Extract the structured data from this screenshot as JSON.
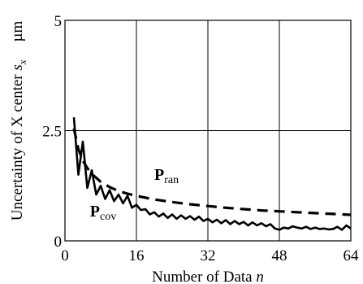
{
  "chart_data": {
    "type": "line",
    "xlabel": "Number of Data",
    "xlabel_var": "n",
    "ylabel": "Uncertainty of X center",
    "ylabel_var_main": "s",
    "ylabel_var_sub": "x",
    "ylabel_unit": "µm",
    "xlim": [
      0,
      64
    ],
    "ylim": [
      0,
      5
    ],
    "xticks": [
      "0",
      "16",
      "32",
      "48",
      "64"
    ],
    "xtick_values": [
      0,
      16,
      32,
      48,
      64
    ],
    "yticks": [
      "0",
      "2.5",
      "5"
    ],
    "ytick_values": [
      0,
      2.5,
      5
    ],
    "grid": true,
    "series": [
      {
        "name_main": "P",
        "name_sub": "ran",
        "style": "dashed",
        "x": [
          2,
          3,
          4,
          5,
          6,
          8,
          10,
          12,
          14,
          16,
          20,
          24,
          28,
          32,
          36,
          40,
          44,
          48,
          52,
          56,
          60,
          64
        ],
        "y": [
          2.55,
          2.08,
          1.82,
          1.65,
          1.52,
          1.34,
          1.22,
          1.13,
          1.07,
          1.02,
          0.94,
          0.88,
          0.83,
          0.79,
          0.75,
          0.72,
          0.69,
          0.67,
          0.65,
          0.63,
          0.61,
          0.59
        ]
      },
      {
        "name_main": "P",
        "name_sub": "cov",
        "style": "solid",
        "x": [
          2,
          3,
          4,
          5,
          6,
          7,
          8,
          9,
          10,
          11,
          12,
          13,
          14,
          15,
          16,
          17,
          18,
          19,
          20,
          21,
          22,
          23,
          24,
          25,
          26,
          27,
          28,
          29,
          30,
          31,
          32,
          33,
          34,
          35,
          36,
          37,
          38,
          39,
          40,
          41,
          42,
          43,
          44,
          45,
          46,
          47,
          48,
          49,
          50,
          51,
          52,
          53,
          54,
          55,
          56,
          57,
          58,
          59,
          60,
          61,
          62,
          63,
          64
        ],
        "y": [
          2.8,
          1.5,
          2.25,
          1.2,
          1.6,
          1.05,
          1.25,
          0.95,
          1.15,
          0.9,
          1.05,
          0.85,
          1.02,
          0.75,
          0.82,
          0.7,
          0.72,
          0.6,
          0.65,
          0.55,
          0.62,
          0.52,
          0.6,
          0.5,
          0.58,
          0.5,
          0.56,
          0.48,
          0.55,
          0.45,
          0.5,
          0.42,
          0.48,
          0.4,
          0.47,
          0.38,
          0.45,
          0.38,
          0.43,
          0.35,
          0.42,
          0.35,
          0.4,
          0.33,
          0.38,
          0.28,
          0.25,
          0.3,
          0.28,
          0.33,
          0.3,
          0.28,
          0.32,
          0.27,
          0.3,
          0.27,
          0.28,
          0.26,
          0.27,
          0.32,
          0.25,
          0.35,
          0.28
        ]
      }
    ]
  }
}
